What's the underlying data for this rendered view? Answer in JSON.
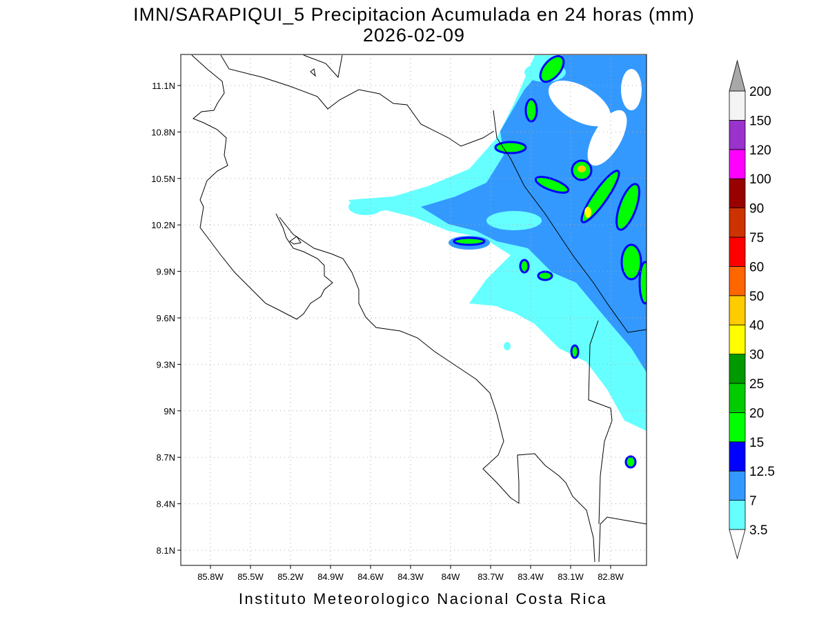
{
  "header": {
    "title": "IMN/SARAPIQUI_5 Precipitacion Acumulada en 24 horas (mm)",
    "date": "2026-02-09"
  },
  "map": {
    "lat_labels": [
      "11.1N",
      "10.8N",
      "10.5N",
      "10.2N",
      "9.9N",
      "9.6N",
      "9.3N",
      "9N",
      "8.7N",
      "8.4N",
      "8.1N"
    ],
    "lon_labels": [
      "85.8W",
      "85.5W",
      "85.2W",
      "84.9W",
      "84.6W",
      "84.3W",
      "84W",
      "83.7W",
      "83.4W",
      "83.1W",
      "82.8W"
    ]
  },
  "legend": {
    "levels": [
      "3.5",
      "7",
      "12.5",
      "15",
      "20",
      "25",
      "30",
      "40",
      "50",
      "60",
      "75",
      "90",
      "100",
      "120",
      "150",
      "200"
    ],
    "colors": [
      "#66ffff",
      "#3399ff",
      "#0000ff",
      "#00ff00",
      "#00cc00",
      "#009900",
      "#ffff00",
      "#ffcc00",
      "#ff6600",
      "#ff0000",
      "#cc3300",
      "#990000",
      "#ff00ff",
      "#9933cc",
      "#f4f4f4"
    ],
    "below_color": "#ffffff",
    "above_color": "#a8a8a8"
  },
  "footer": "Instituto Meteorologico Nacional Costa Rica"
}
